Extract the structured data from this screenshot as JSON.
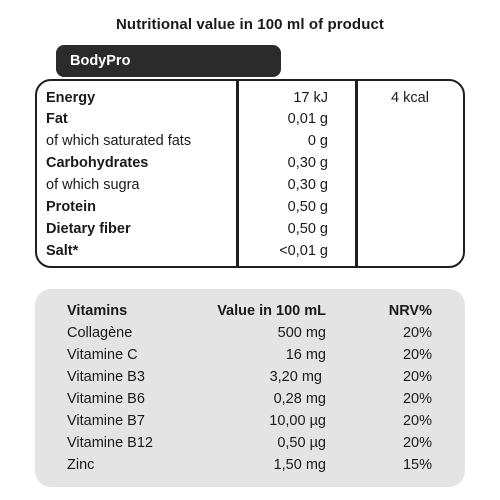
{
  "title": "Nutritional value in 100 ml of product",
  "brand": "BodyPro",
  "energy_kcal": "4 kcal",
  "nutrition": [
    {
      "label": "Energy",
      "value": "17 kJ"
    },
    {
      "label": "Fat",
      "value": "0,01 g"
    },
    {
      "label": "of which saturated fats",
      "value": "0 g"
    },
    {
      "label": "Carbohydrates",
      "value": "0,30 g"
    },
    {
      "label": "of which sugra",
      "value": "0,30 g"
    },
    {
      "label": "Protein",
      "value": "0,50 g"
    },
    {
      "label": "Dietary fiber",
      "value": "0,50 g"
    },
    {
      "label": "Salt*",
      "value": "<0,01 g"
    }
  ],
  "vitamins": {
    "headers": {
      "name": "Vitamins",
      "value": "Value in 100 mL",
      "nrv": "NRV%"
    },
    "rows": [
      {
        "name": "Collagène",
        "value": "500 mg",
        "nrv": "20%"
      },
      {
        "name": "Vitamine C",
        "value": "16 mg",
        "nrv": "20%"
      },
      {
        "name": "Vitamine B3",
        "value": "3,20 mg",
        "nrv": "20%"
      },
      {
        "name": "Vitamine B6",
        "value": "0,28 mg",
        "nrv": "20%"
      },
      {
        "name": "Vitamine B7",
        "value": "10,00 µg",
        "nrv": "20%"
      },
      {
        "name": "Vitamine B12",
        "value": "0,50 µg",
        "nrv": "20%"
      },
      {
        "name": "Zinc",
        "value": "1,50 mg",
        "nrv": "15%"
      }
    ]
  }
}
